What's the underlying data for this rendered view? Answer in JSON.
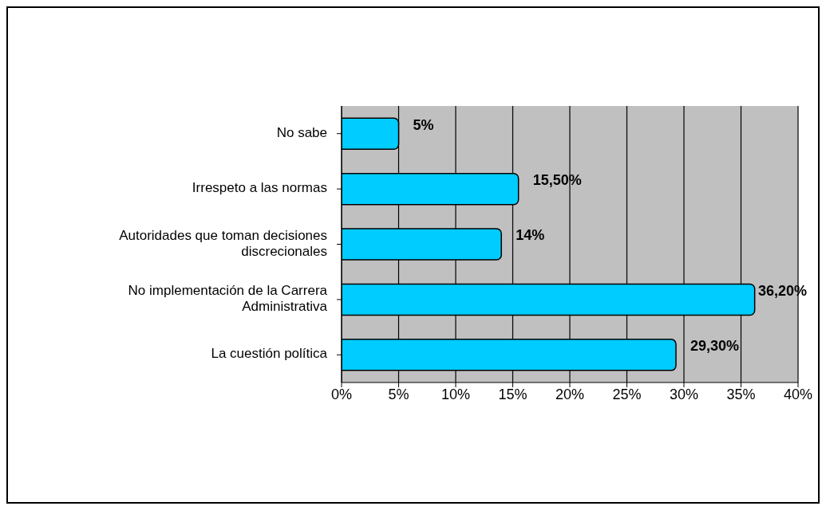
{
  "chart_data": {
    "type": "bar",
    "orientation": "horizontal",
    "categories": [
      "No sabe",
      "Irrespeto a las normas",
      "Autoridades que toman decisiones discrecionales",
      "No implementación de la Carrera Administrativa",
      "La cuestión política"
    ],
    "values": [
      5,
      15.5,
      14,
      36.2,
      29.3
    ],
    "value_labels": [
      "5%",
      "15,50%",
      "14%",
      "36,20%",
      "29,30%"
    ],
    "color": "#00ccff",
    "xlim": [
      0,
      40
    ],
    "xticks": [
      {
        "value": 0,
        "label": "0%"
      },
      {
        "value": 5,
        "label": "5%"
      },
      {
        "value": 10,
        "label": "10%"
      },
      {
        "value": 15,
        "label": "15%"
      },
      {
        "value": 20,
        "label": "20%"
      },
      {
        "value": 25,
        "label": "25%"
      },
      {
        "value": 30,
        "label": "30%"
      },
      {
        "value": 35,
        "label": "35%"
      },
      {
        "value": 40,
        "label": "40%"
      }
    ],
    "grid": "x"
  }
}
